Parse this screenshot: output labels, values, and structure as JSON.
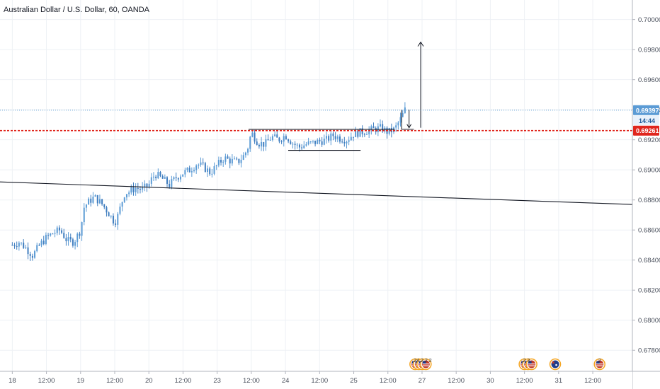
{
  "chart_data": {
    "type": "candlestick",
    "title": "Australian Dollar / U.S. Dollar, 60, OANDA",
    "ylim": [
      0.6766,
      0.7013
    ],
    "xlim": [
      -0.18,
      9.08
    ],
    "y_ticks": [
      "0.70000",
      "0.69800",
      "0.69600",
      "0.69400",
      "0.69200",
      "0.69000",
      "0.68800",
      "0.68600",
      "0.68400",
      "0.68200",
      "0.68000",
      "0.67800"
    ],
    "y_tick_values": [
      0.7,
      0.698,
      0.696,
      0.694,
      0.692,
      0.69,
      0.688,
      0.686,
      0.684,
      0.682,
      0.68,
      0.678
    ],
    "x_ticks": [
      "18",
      "12:00",
      "19",
      "12:00",
      "20",
      "12:00",
      "23",
      "12:00",
      "24",
      "12:00",
      "25",
      "12:00",
      "27",
      "12:00",
      "30",
      "12:00",
      "31",
      "12:00"
    ],
    "x_tick_values": [
      0,
      0.5,
      1,
      1.5,
      2,
      2.5,
      3,
      3.5,
      4,
      4.5,
      5,
      5.5,
      6,
      6.5,
      7,
      7.5,
      8,
      8.5
    ],
    "close_points": [
      [
        0.0,
        0.685
      ],
      [
        0.1,
        0.6852
      ],
      [
        0.2,
        0.6848
      ],
      [
        0.3,
        0.6843
      ],
      [
        0.4,
        0.685
      ],
      [
        0.5,
        0.6855
      ],
      [
        0.6,
        0.6858
      ],
      [
        0.7,
        0.686
      ],
      [
        0.8,
        0.6853
      ],
      [
        0.9,
        0.6852
      ],
      [
        1.0,
        0.686
      ],
      [
        1.05,
        0.6875
      ],
      [
        1.1,
        0.6878
      ],
      [
        1.2,
        0.6882
      ],
      [
        1.3,
        0.6878
      ],
      [
        1.4,
        0.6872
      ],
      [
        1.5,
        0.6865
      ],
      [
        1.55,
        0.687
      ],
      [
        1.6,
        0.6878
      ],
      [
        1.65,
        0.6885
      ],
      [
        1.7,
        0.6885
      ],
      [
        1.8,
        0.6888
      ],
      [
        1.9,
        0.6887
      ],
      [
        2.0,
        0.689
      ],
      [
        2.05,
        0.6895
      ],
      [
        2.1,
        0.6897
      ],
      [
        2.2,
        0.6894
      ],
      [
        2.3,
        0.689
      ],
      [
        2.4,
        0.6895
      ],
      [
        2.5,
        0.6898
      ],
      [
        2.6,
        0.69
      ],
      [
        2.7,
        0.6904
      ],
      [
        2.8,
        0.6902
      ],
      [
        2.9,
        0.6898
      ],
      [
        3.0,
        0.6903
      ],
      [
        3.1,
        0.6908
      ],
      [
        3.2,
        0.6906
      ],
      [
        3.3,
        0.6905
      ],
      [
        3.4,
        0.691
      ],
      [
        3.45,
        0.6915
      ],
      [
        3.5,
        0.6925
      ],
      [
        3.6,
        0.6918
      ],
      [
        3.7,
        0.6917
      ],
      [
        3.8,
        0.6922
      ],
      [
        3.9,
        0.692
      ],
      [
        4.0,
        0.6923
      ],
      [
        4.1,
        0.6918
      ],
      [
        4.2,
        0.6915
      ],
      [
        4.3,
        0.6917
      ],
      [
        4.4,
        0.6918
      ],
      [
        4.5,
        0.6919
      ],
      [
        4.6,
        0.692
      ],
      [
        4.7,
        0.6923
      ],
      [
        4.8,
        0.6921
      ],
      [
        4.9,
        0.692
      ],
      [
        5.0,
        0.6924
      ],
      [
        5.1,
        0.6925
      ],
      [
        5.2,
        0.6926
      ],
      [
        5.3,
        0.6927
      ],
      [
        5.4,
        0.6928
      ],
      [
        5.5,
        0.6925
      ],
      [
        5.6,
        0.6927
      ],
      [
        5.7,
        0.6935
      ],
      [
        5.75,
        0.694
      ]
    ],
    "horizontal_lines": [
      {
        "name": "last-price",
        "y": 0.69397,
        "label": "0.69397",
        "color": "#5b9bd5",
        "style": "dotted"
      },
      {
        "name": "red-level",
        "y": 0.69261,
        "label": "0.69261",
        "color": "#e0261d",
        "style": "dashed"
      }
    ],
    "countdown_label": "14:44",
    "drawings": {
      "resistance": [
        [
          3.46,
          0.6927
        ],
        [
          5.6,
          0.6927
        ]
      ],
      "support": [
        [
          4.04,
          0.6913
        ],
        [
          5.1,
          0.6913
        ]
      ],
      "trendline": [
        [
          -0.18,
          0.6892
        ],
        [
          9.08,
          0.6877
        ]
      ],
      "small_box": [
        [
          5.7,
          0.694
        ],
        [
          5.88,
          0.6927
        ]
      ],
      "target_arrow": [
        [
          5.98,
          0.6928
        ],
        [
          5.98,
          0.6985
        ]
      ],
      "down_arrow": [
        [
          5.81,
          0.694
        ],
        [
          5.81,
          0.6928
        ]
      ]
    },
    "events": [
      {
        "x": 5.9,
        "flags": [
          "US",
          "US",
          "US",
          "US"
        ],
        "label": "24 2 2 2"
      },
      {
        "x": 7.5,
        "flags": [
          "US",
          "US",
          "US"
        ],
        "label": "2 3"
      },
      {
        "x": 7.95,
        "flags": [
          "AU"
        ],
        "label": ""
      },
      {
        "x": 8.6,
        "flags": [
          "US"
        ],
        "label": "2"
      }
    ],
    "colors": {
      "up": "#5b9bd5",
      "down": "#3f7dbf",
      "grid": "#eef1f5",
      "axis": "#b2b5be",
      "drawing": "#131722",
      "red": "#e0261d",
      "blue": "#5b9bd5"
    }
  }
}
